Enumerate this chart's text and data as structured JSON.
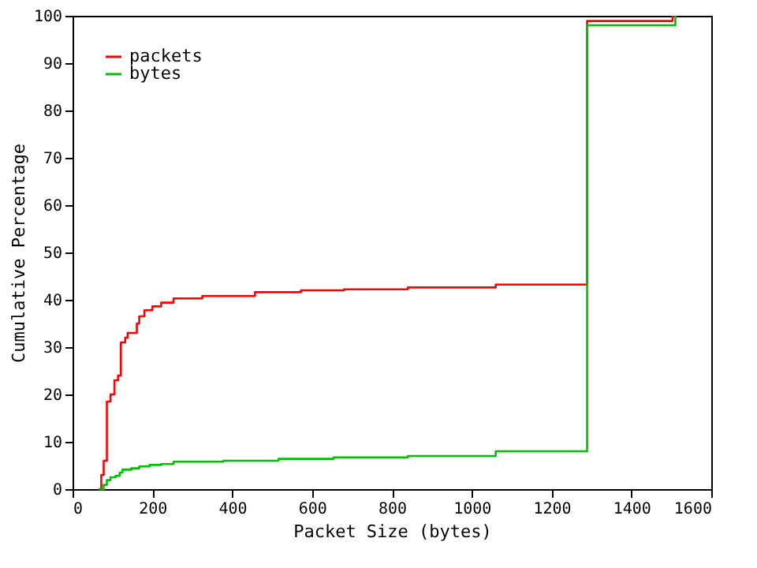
{
  "chart_data": {
    "type": "step",
    "xlabel": "Packet Size (bytes)",
    "ylabel": "Cumulative Percentage",
    "xlim": [
      0,
      1600
    ],
    "xticks": [
      0,
      200,
      400,
      600,
      800,
      1000,
      1200,
      1400,
      1600
    ],
    "ylim": [
      0,
      100
    ],
    "yticks": [
      0,
      10,
      20,
      30,
      40,
      50,
      60,
      70,
      80,
      90,
      100
    ],
    "grid": false,
    "legend": "top left",
    "series": [
      {
        "name": "packets",
        "color": "#ff0000",
        "x": [
          66,
          72,
          78,
          86,
          95,
          105,
          114,
          121,
          132,
          138,
          161,
          167,
          180,
          200,
          222,
          253,
          325,
          457,
          572,
          680,
          840,
          1060,
          1289,
          1503
        ],
        "values": [
          0,
          3,
          6,
          18.5,
          20,
          23,
          24,
          31,
          32,
          33,
          35,
          36.5,
          37.8,
          38.6,
          39.4,
          40.3,
          40.8,
          41.6,
          42,
          42.2,
          42.6,
          43.2,
          98.9,
          100
        ]
      },
      {
        "name": "bytes",
        "color": "#00c000",
        "x": [
          66,
          78,
          86,
          95,
          108,
          118,
          125,
          147,
          167,
          193,
          222,
          253,
          378,
          516,
          654,
          840,
          1060,
          1289,
          1500,
          1510
        ],
        "values": [
          0,
          0.9,
          1.9,
          2.5,
          2.8,
          3.5,
          4.1,
          4.4,
          4.8,
          5.1,
          5.3,
          5.8,
          6.0,
          6.4,
          6.7,
          7.0,
          8.0,
          98,
          98,
          100
        ]
      }
    ]
  }
}
